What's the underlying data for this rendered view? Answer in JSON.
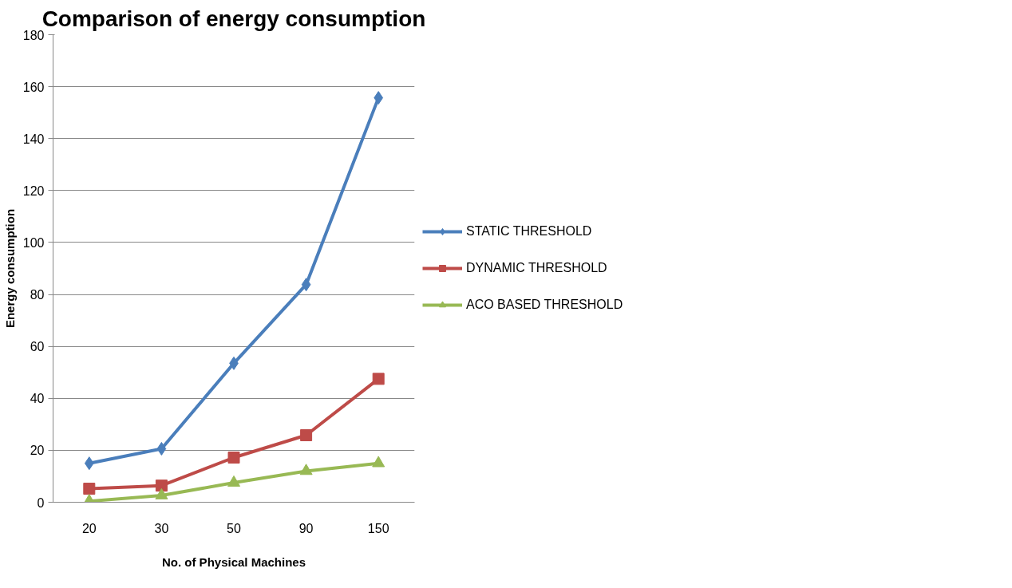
{
  "chart_data": {
    "type": "line",
    "title": "Comparison of energy consumption",
    "xlabel": "No. of Physical Machines",
    "ylabel": "Energy consumption",
    "categories": [
      "20",
      "30",
      "50",
      "90",
      "150"
    ],
    "series": [
      {
        "name": "STATIC THRESHOLD",
        "color": "#4a7ebb",
        "marker": "diamond",
        "values": [
          15.0,
          20.6,
          53.5,
          83.8,
          155.7
        ]
      },
      {
        "name": "DYNAMIC THRESHOLD",
        "color": "#be4b48",
        "marker": "square",
        "values": [
          5.2,
          6.4,
          17.2,
          25.8,
          47.5
        ]
      },
      {
        "name": "ACO BASED THRESHOLD",
        "color": "#98b954",
        "marker": "triangle",
        "values": [
          0.4,
          2.6,
          7.5,
          12.0,
          15.0
        ]
      }
    ],
    "ylim": [
      0,
      180
    ],
    "yticks": [
      0,
      20,
      40,
      60,
      80,
      100,
      120,
      140,
      160,
      180
    ],
    "grid": "y",
    "legend": "right"
  }
}
